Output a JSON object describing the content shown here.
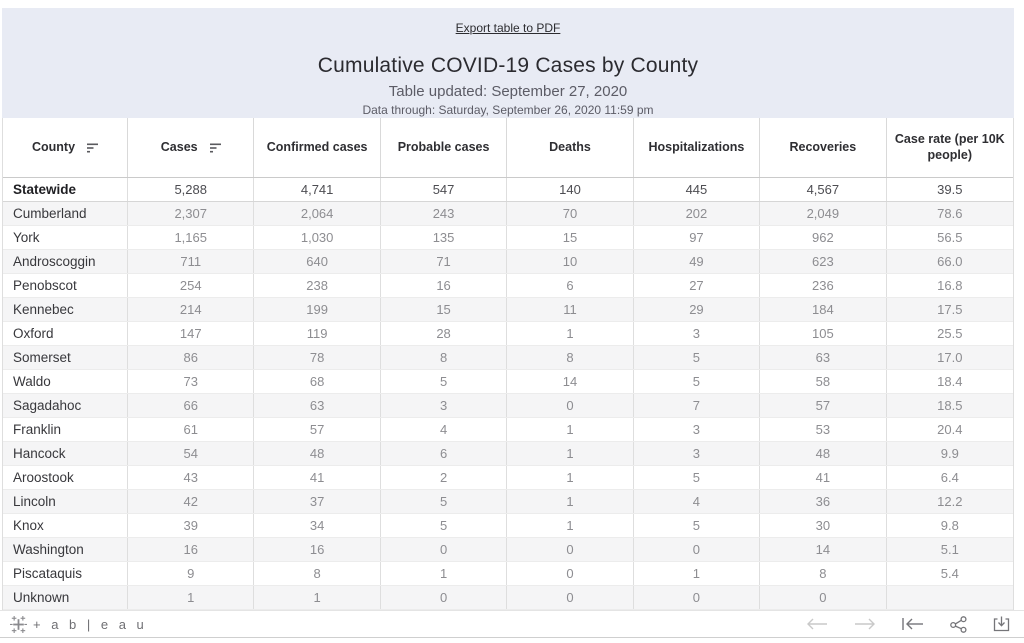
{
  "banner": {
    "export_link": "Export table to PDF",
    "title": "Cumulative COVID-19 Cases by County",
    "updated_line": "Table updated: September 27, 2020",
    "data_through_line": "Data through: Saturday, September 26, 2020 11:59 pm"
  },
  "chart_data": {
    "type": "table",
    "title": "Cumulative COVID-19 Cases by County",
    "columns": [
      "County",
      "Cases",
      "Confirmed cases",
      "Probable cases",
      "Deaths",
      "Hospitalizations",
      "Recoveries",
      "Case rate (per 10K people)"
    ],
    "sorted_columns": [
      "County",
      "Cases"
    ],
    "rows": [
      [
        "Statewide",
        "5,288",
        "4,741",
        "547",
        "140",
        "445",
        "4,567",
        "39.5"
      ],
      [
        "Cumberland",
        "2,307",
        "2,064",
        "243",
        "70",
        "202",
        "2,049",
        "78.6"
      ],
      [
        "York",
        "1,165",
        "1,030",
        "135",
        "15",
        "97",
        "962",
        "56.5"
      ],
      [
        "Androscoggin",
        "711",
        "640",
        "71",
        "10",
        "49",
        "623",
        "66.0"
      ],
      [
        "Penobscot",
        "254",
        "238",
        "16",
        "6",
        "27",
        "236",
        "16.8"
      ],
      [
        "Kennebec",
        "214",
        "199",
        "15",
        "11",
        "29",
        "184",
        "17.5"
      ],
      [
        "Oxford",
        "147",
        "119",
        "28",
        "1",
        "3",
        "105",
        "25.5"
      ],
      [
        "Somerset",
        "86",
        "78",
        "8",
        "8",
        "5",
        "63",
        "17.0"
      ],
      [
        "Waldo",
        "73",
        "68",
        "5",
        "14",
        "5",
        "58",
        "18.4"
      ],
      [
        "Sagadahoc",
        "66",
        "63",
        "3",
        "0",
        "7",
        "57",
        "18.5"
      ],
      [
        "Franklin",
        "61",
        "57",
        "4",
        "1",
        "3",
        "53",
        "20.4"
      ],
      [
        "Hancock",
        "54",
        "48",
        "6",
        "1",
        "3",
        "48",
        "9.9"
      ],
      [
        "Aroostook",
        "43",
        "41",
        "2",
        "1",
        "5",
        "41",
        "6.4"
      ],
      [
        "Lincoln",
        "42",
        "37",
        "5",
        "1",
        "4",
        "36",
        "12.2"
      ],
      [
        "Knox",
        "39",
        "34",
        "5",
        "1",
        "5",
        "30",
        "9.8"
      ],
      [
        "Washington",
        "16",
        "16",
        "0",
        "0",
        "0",
        "14",
        "5.1"
      ],
      [
        "Piscataquis",
        "9",
        "8",
        "1",
        "0",
        "1",
        "8",
        "5.4"
      ],
      [
        "Unknown",
        "1",
        "1",
        "0",
        "0",
        "0",
        "0",
        ""
      ]
    ]
  },
  "footer": {
    "logo_text": "+ a b | e a u",
    "icons": [
      "undo",
      "redo",
      "reset",
      "share",
      "download"
    ]
  },
  "colors": {
    "banner_bg": "#e8ebf4",
    "stripe_bg": "#f5f5f6",
    "value_text": "#8d8d91",
    "label_text": "#38383c",
    "header_text": "#2e2e32",
    "border": "#d9d9d9",
    "disabled_icon": "#c9c9c9",
    "active_icon": "#757579"
  }
}
